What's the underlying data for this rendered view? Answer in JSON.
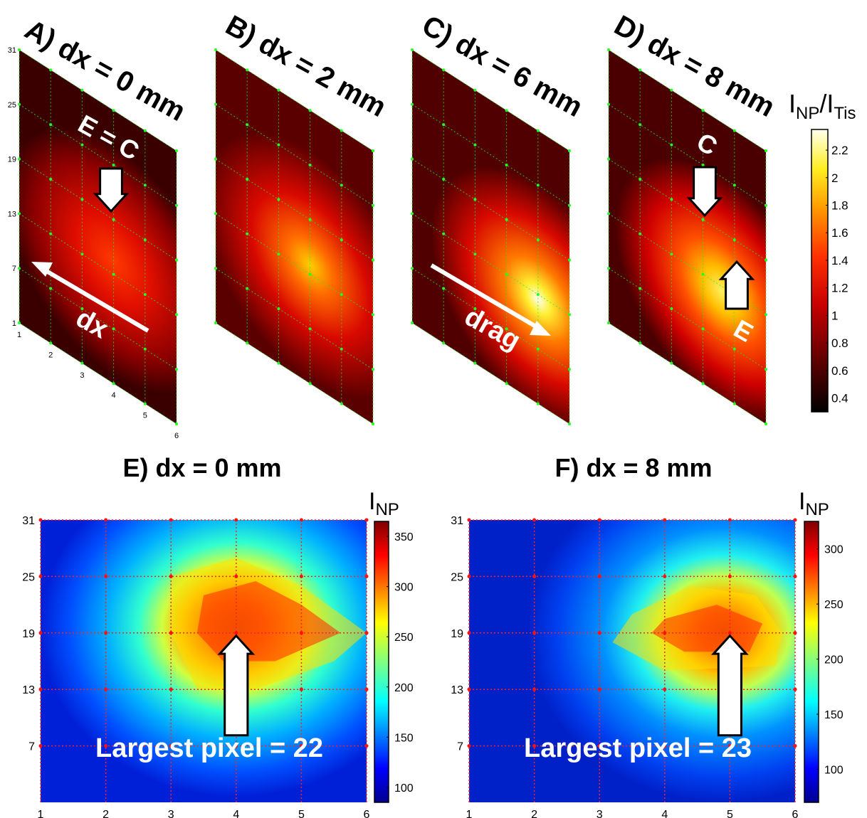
{
  "chart_data": [
    {
      "id": "A",
      "type": "heatmap",
      "view": "3d-oblique",
      "title": "A) dx = 0 mm",
      "x_ticks": [
        "1",
        "2",
        "3",
        "4",
        "5",
        "6"
      ],
      "y_ticks": [
        "1",
        "7",
        "13",
        "19",
        "25",
        "31"
      ],
      "colorbar_label": "INP/ITis",
      "peak": {
        "x": 4,
        "y": 14.5,
        "value": 1.45
      },
      "annotations": [
        {
          "text": "E = C",
          "at": "center",
          "arrow": "down"
        },
        {
          "text": "dx",
          "arrow": "toward-back"
        }
      ]
    },
    {
      "id": "B",
      "type": "heatmap",
      "view": "3d-oblique",
      "title": "B) dx = 2 mm",
      "peak": {
        "x": 4,
        "y": 14,
        "value": 1.75
      }
    },
    {
      "id": "C",
      "type": "heatmap",
      "view": "3d-oblique",
      "title": "C) dx = 6 mm",
      "peak": {
        "x": 5,
        "y": 12.5,
        "value": 2.3
      },
      "annotations": [
        {
          "text": "drag",
          "arrow": "toward-front"
        }
      ]
    },
    {
      "id": "D",
      "type": "heatmap",
      "view": "3d-oblique",
      "title": "D) dx = 8 mm",
      "peak": {
        "x": 4.6,
        "y": 12.5,
        "value": 2.1
      },
      "annotations": [
        {
          "text": "C",
          "arrow": "down"
        },
        {
          "text": "E",
          "arrow": "up"
        }
      ]
    },
    {
      "id": "E",
      "type": "heatmap",
      "title": "E) dx = 0 mm",
      "x_ticks": [
        "1",
        "2",
        "3",
        "4",
        "5",
        "6"
      ],
      "y_ticks": [
        "7",
        "13",
        "19",
        "25",
        "31"
      ],
      "xlim": [
        1,
        6
      ],
      "ylim": [
        1,
        31
      ],
      "colorbar": {
        "label": "INP",
        "range": [
          85,
          365
        ],
        "ticks": [
          100,
          150,
          200,
          250,
          300,
          350
        ]
      },
      "peak": {
        "x": 4,
        "y": 19,
        "value": 360
      },
      "annotation": "Largest pixel = 22"
    },
    {
      "id": "F",
      "type": "heatmap",
      "title": "F) dx = 8 mm",
      "x_ticks": [
        "1",
        "2",
        "3",
        "4",
        "5",
        "6"
      ],
      "y_ticks": [
        "7",
        "13",
        "19",
        "25",
        "31"
      ],
      "xlim": [
        1,
        6
      ],
      "ylim": [
        1,
        31
      ],
      "colorbar": {
        "label": "INP",
        "range": [
          70,
          325
        ],
        "ticks": [
          100,
          150,
          200,
          250,
          300
        ]
      },
      "peak": {
        "x": 5,
        "y": 19,
        "value": 320
      },
      "annotation": "Largest pixel = 23"
    }
  ],
  "top_colorbar": {
    "label_main": "I",
    "label_sub1": "NP",
    "label_mid": "/I",
    "label_sub2": "Tis",
    "ticks": [
      "2.2",
      "2",
      "1.8",
      "1.6",
      "1.4",
      "1.2",
      "1",
      "0.8",
      "0.6",
      "0.4"
    ],
    "range": [
      0.3,
      2.35
    ]
  },
  "bottom_labels": {
    "inp_main": "I",
    "inp_sub": "NP"
  },
  "colors": {
    "heat_dark": "#000000",
    "heat_red": "#e00000",
    "heat_yellow": "#ffee00",
    "jet_blue": "#0000c0",
    "jet_red": "#c00000",
    "grid_green": "#22ee22",
    "grid_red": "#ff2020"
  }
}
